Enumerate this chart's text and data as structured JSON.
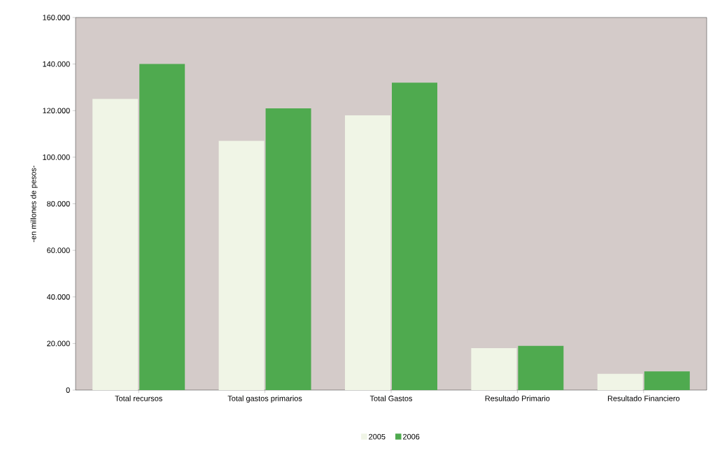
{
  "chart_data": {
    "type": "bar",
    "ylabel": "-en millones de  pesos-",
    "categories": [
      "Total recursos",
      "Total gastos primarios",
      "Total Gastos",
      "Resultado Primario",
      "Resultado Financiero"
    ],
    "series": [
      {
        "name": "2005",
        "color": "#f0f5e6",
        "values": [
          125000,
          107000,
          118000,
          18000,
          7000
        ]
      },
      {
        "name": "2006",
        "color": "#4faa4f",
        "values": [
          140000,
          121000,
          132000,
          19000,
          8000
        ]
      }
    ],
    "ylim": [
      0,
      160000
    ],
    "yticks": [
      {
        "value": 0,
        "label": "0"
      },
      {
        "value": 20000,
        "label": "20.000"
      },
      {
        "value": 40000,
        "label": "40.000"
      },
      {
        "value": 60000,
        "label": "60.000"
      },
      {
        "value": 80000,
        "label": "80.000"
      },
      {
        "value": 100000,
        "label": "100.000"
      },
      {
        "value": 120000,
        "label": "120.000"
      },
      {
        "value": 140000,
        "label": "140.000"
      },
      {
        "value": 160000,
        "label": "160.000"
      }
    ],
    "grid": false,
    "legend": "bottom"
  }
}
